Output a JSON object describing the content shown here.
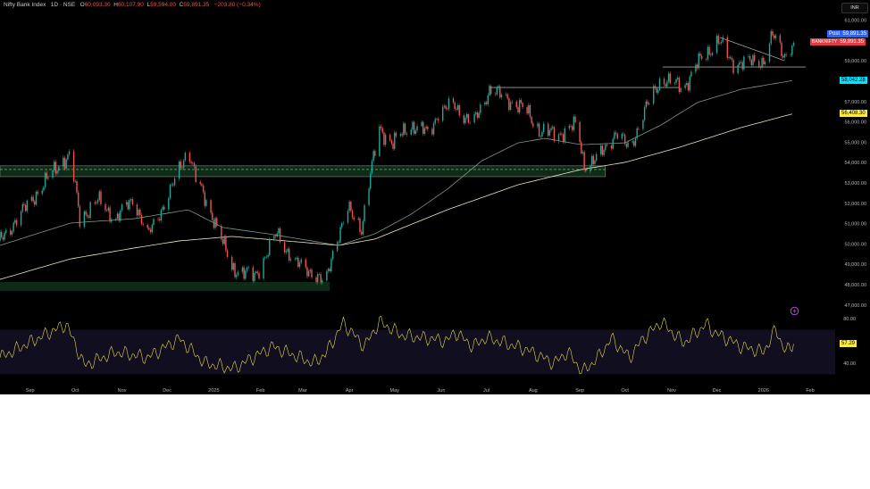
{
  "header": {
    "symbol": "Nifty Bank Index",
    "interval_exchange": "1D · NSE",
    "open_label": "O",
    "open": "60,093.30",
    "high_label": "H",
    "high": "60,107.90",
    "low_label": "L",
    "low": "59,594.00",
    "close_label": "C",
    "close": "59,891.35",
    "change": "−203.80 (−0.34%)"
  },
  "currency_button": "INR",
  "price_labels": {
    "post_tag": "Post",
    "post_value": "59,891.35",
    "symbol_tag": "BANKNIFTY",
    "symbol_value": "59,891.35",
    "ma_fast_value": "58,042.28",
    "ma_slow_value": "56,408.30",
    "rsi_value": "57.29"
  },
  "colors": {
    "up": "#26a69a",
    "down": "#ef5350",
    "ma_fast": "#7a9a8a",
    "ma_slow": "#e8e6c8",
    "rsi": "#e6d84a",
    "rsi_band": "#110f1f",
    "zone": "#0f2a16",
    "post": "#2962ff",
    "symbol": "#e53946",
    "ma_fast_label": "#00e5ff",
    "ma_slow_label": "#ffeb3b",
    "alert_icon": "#b04bd8"
  },
  "icons": {
    "alert": "lightning-icon"
  },
  "chart_data": {
    "type": "candlestick",
    "symbol": "Nifty Bank Index",
    "xlim": [
      "2024-08-12",
      "2026-02-01"
    ],
    "ylim": [
      46500,
      61500
    ],
    "y_ticks": [
      "61,000.00",
      "59,000.00",
      "57,000.00",
      "56,000.00",
      "55,000.00",
      "54,000.00",
      "53,000.00",
      "52,000.00",
      "51,000.00",
      "50,000.00",
      "49,000.00",
      "48,000.00",
      "47,000.00"
    ],
    "y_tick_values": [
      61000,
      59000,
      57000,
      56000,
      55000,
      54000,
      53000,
      52000,
      51000,
      50000,
      49000,
      48000,
      47000
    ],
    "x_ticks": [
      {
        "label": "Sep",
        "date": "2024-09-01"
      },
      {
        "label": "Oct",
        "date": "2024-10-01"
      },
      {
        "label": "Nov",
        "date": "2024-11-01"
      },
      {
        "label": "Dec",
        "date": "2024-12-01"
      },
      {
        "label": "2025",
        "date": "2025-01-01"
      },
      {
        "label": "Feb",
        "date": "2025-02-01"
      },
      {
        "label": "Mar",
        "date": "2025-03-01"
      },
      {
        "label": "Apr",
        "date": "2025-04-01"
      },
      {
        "label": "May",
        "date": "2025-05-01"
      },
      {
        "label": "Jun",
        "date": "2025-06-01"
      },
      {
        "label": "Jul",
        "date": "2025-07-01"
      },
      {
        "label": "Aug",
        "date": "2025-08-01"
      },
      {
        "label": "Sep",
        "date": "2025-09-01"
      },
      {
        "label": "Oct",
        "date": "2025-10-01"
      },
      {
        "label": "Nov",
        "date": "2025-11-01"
      },
      {
        "label": "Dec",
        "date": "2025-12-01"
      },
      {
        "label": "2026",
        "date": "2026-01-01"
      },
      {
        "label": "Feb",
        "date": "2026-02-01"
      }
    ],
    "close_path": [
      [
        "2024-08-12",
        50150
      ],
      [
        "2024-09-22",
        54100
      ],
      [
        "2024-09-28",
        54310
      ],
      [
        "2024-10-04",
        51240
      ],
      [
        "2024-10-16",
        52120
      ],
      [
        "2024-10-28",
        51240
      ],
      [
        "2024-11-09",
        52250
      ],
      [
        "2024-11-18",
        50370
      ],
      [
        "2024-12-03",
        52560
      ],
      [
        "2024-12-15",
        54750
      ],
      [
        "2024-12-20",
        53220
      ],
      [
        "2025-01-01",
        51240
      ],
      [
        "2025-01-13",
        48830
      ],
      [
        "2025-01-28",
        48390
      ],
      [
        "2025-02-12",
        50500
      ],
      [
        "2025-02-24",
        49050
      ],
      [
        "2025-03-08",
        48610
      ],
      [
        "2025-03-16",
        47950
      ],
      [
        "2025-03-22",
        49930
      ],
      [
        "2025-03-31",
        51680
      ],
      [
        "2025-04-09",
        50800
      ],
      [
        "2025-04-15",
        53440
      ],
      [
        "2025-04-21",
        55630
      ],
      [
        "2025-04-30",
        54970
      ],
      [
        "2025-05-12",
        55850
      ],
      [
        "2025-05-24",
        55410
      ],
      [
        "2025-05-30",
        56500
      ],
      [
        "2025-06-10",
        56810
      ],
      [
        "2025-06-22",
        55850
      ],
      [
        "2025-07-03",
        57600
      ],
      [
        "2025-07-16",
        57080
      ],
      [
        "2025-07-28",
        56500
      ],
      [
        "2025-08-06",
        55500
      ],
      [
        "2025-08-18",
        55410
      ],
      [
        "2025-08-30",
        55850
      ],
      [
        "2025-09-04",
        53880
      ],
      [
        "2025-09-13",
        54190
      ],
      [
        "2025-09-25",
        55500
      ],
      [
        "2025-10-04",
        54620
      ],
      [
        "2025-10-13",
        56380
      ],
      [
        "2025-10-25",
        58130
      ],
      [
        "2025-11-09",
        57690
      ],
      [
        "2025-11-18",
        58830
      ],
      [
        "2025-12-02",
        60020
      ],
      [
        "2025-12-11",
        58920
      ],
      [
        "2025-12-23",
        58920
      ],
      [
        "2026-01-01",
        59010
      ],
      [
        "2026-01-07",
        60240
      ],
      [
        "2026-01-15",
        59270
      ],
      [
        "2026-01-21",
        59891.35
      ]
    ],
    "ma_fast": [
      [
        "2024-08-12",
        49930
      ],
      [
        "2024-09-28",
        51030
      ],
      [
        "2024-11-09",
        51240
      ],
      [
        "2024-12-15",
        51680
      ],
      [
        "2025-01-07",
        50810
      ],
      [
        "2025-02-06",
        50500
      ],
      [
        "2025-03-25",
        49930
      ],
      [
        "2025-04-18",
        50500
      ],
      [
        "2025-05-12",
        51460
      ],
      [
        "2025-06-05",
        52690
      ],
      [
        "2025-06-28",
        54090
      ],
      [
        "2025-07-22",
        54970
      ],
      [
        "2025-08-09",
        55190
      ],
      [
        "2025-09-02",
        54880
      ],
      [
        "2025-10-01",
        54970
      ],
      [
        "2025-10-25",
        55850
      ],
      [
        "2025-11-18",
        56950
      ],
      [
        "2025-12-17",
        57600
      ],
      [
        "2026-01-21",
        58042.28
      ]
    ],
    "ma_slow": [
      [
        "2024-08-12",
        48260
      ],
      [
        "2024-09-28",
        49270
      ],
      [
        "2024-11-09",
        49800
      ],
      [
        "2024-12-09",
        50150
      ],
      [
        "2025-01-13",
        50370
      ],
      [
        "2025-02-18",
        50150
      ],
      [
        "2025-03-25",
        49930
      ],
      [
        "2025-04-18",
        50240
      ],
      [
        "2025-06-05",
        51680
      ],
      [
        "2025-07-22",
        52910
      ],
      [
        "2025-09-02",
        53660
      ],
      [
        "2025-10-01",
        54010
      ],
      [
        "2025-11-06",
        54750
      ],
      [
        "2025-12-17",
        55720
      ],
      [
        "2026-01-21",
        56408.3
      ]
    ],
    "zones": [
      {
        "from": "2024-08-12",
        "to": "2025-09-18",
        "top": 53840,
        "bottom": 53310,
        "dashed_level": 53660
      },
      {
        "from": "2024-08-12",
        "to": "2025-03-19",
        "top": 48130,
        "bottom": 47690
      }
    ],
    "lines": [
      {
        "from": [
          "2025-07-03",
          57690
        ],
        "to": [
          "2025-11-06",
          57690
        ]
      },
      {
        "from": [
          "2025-10-26",
          58700
        ],
        "to": [
          "2026-01-29",
          58700
        ]
      },
      {
        "from": [
          "2025-12-03",
          60150
        ],
        "to": [
          "2026-01-15",
          59010
        ]
      }
    ],
    "rsi": {
      "ticks": [
        "80.00",
        "40.00"
      ],
      "tick_values": [
        80,
        40
      ],
      "band": [
        30,
        70
      ],
      "values": [
        [
          "2024-08-12",
          45
        ],
        [
          "2024-09-25",
          75
        ],
        [
          "2024-10-07",
          38
        ],
        [
          "2024-10-28",
          50
        ],
        [
          "2024-11-18",
          45
        ],
        [
          "2024-12-09",
          62
        ],
        [
          "2024-12-26",
          40
        ],
        [
          "2025-01-14",
          35
        ],
        [
          "2025-02-09",
          55
        ],
        [
          "2025-03-08",
          40
        ],
        [
          "2025-03-16",
          48
        ],
        [
          "2025-03-28",
          76
        ],
        [
          "2025-04-11",
          55
        ],
        [
          "2025-04-21",
          77
        ],
        [
          "2025-05-06",
          65
        ],
        [
          "2025-06-05",
          60
        ],
        [
          "2025-06-10",
          68
        ],
        [
          "2025-06-22",
          55
        ],
        [
          "2025-07-01",
          63
        ],
        [
          "2025-07-28",
          52
        ],
        [
          "2025-08-15",
          40
        ],
        [
          "2025-08-24",
          50
        ],
        [
          "2025-09-03",
          32
        ],
        [
          "2025-09-13",
          45
        ],
        [
          "2025-09-22",
          62
        ],
        [
          "2025-10-04",
          45
        ],
        [
          "2025-10-13",
          62
        ],
        [
          "2025-10-25",
          77
        ],
        [
          "2025-11-09",
          58
        ],
        [
          "2025-11-24",
          75
        ],
        [
          "2025-11-29",
          68
        ],
        [
          "2025-12-17",
          55
        ],
        [
          "2026-01-01",
          50
        ],
        [
          "2026-01-09",
          70
        ],
        [
          "2026-01-16",
          50
        ],
        [
          "2026-01-21",
          57.29
        ]
      ]
    },
    "grid": false
  }
}
